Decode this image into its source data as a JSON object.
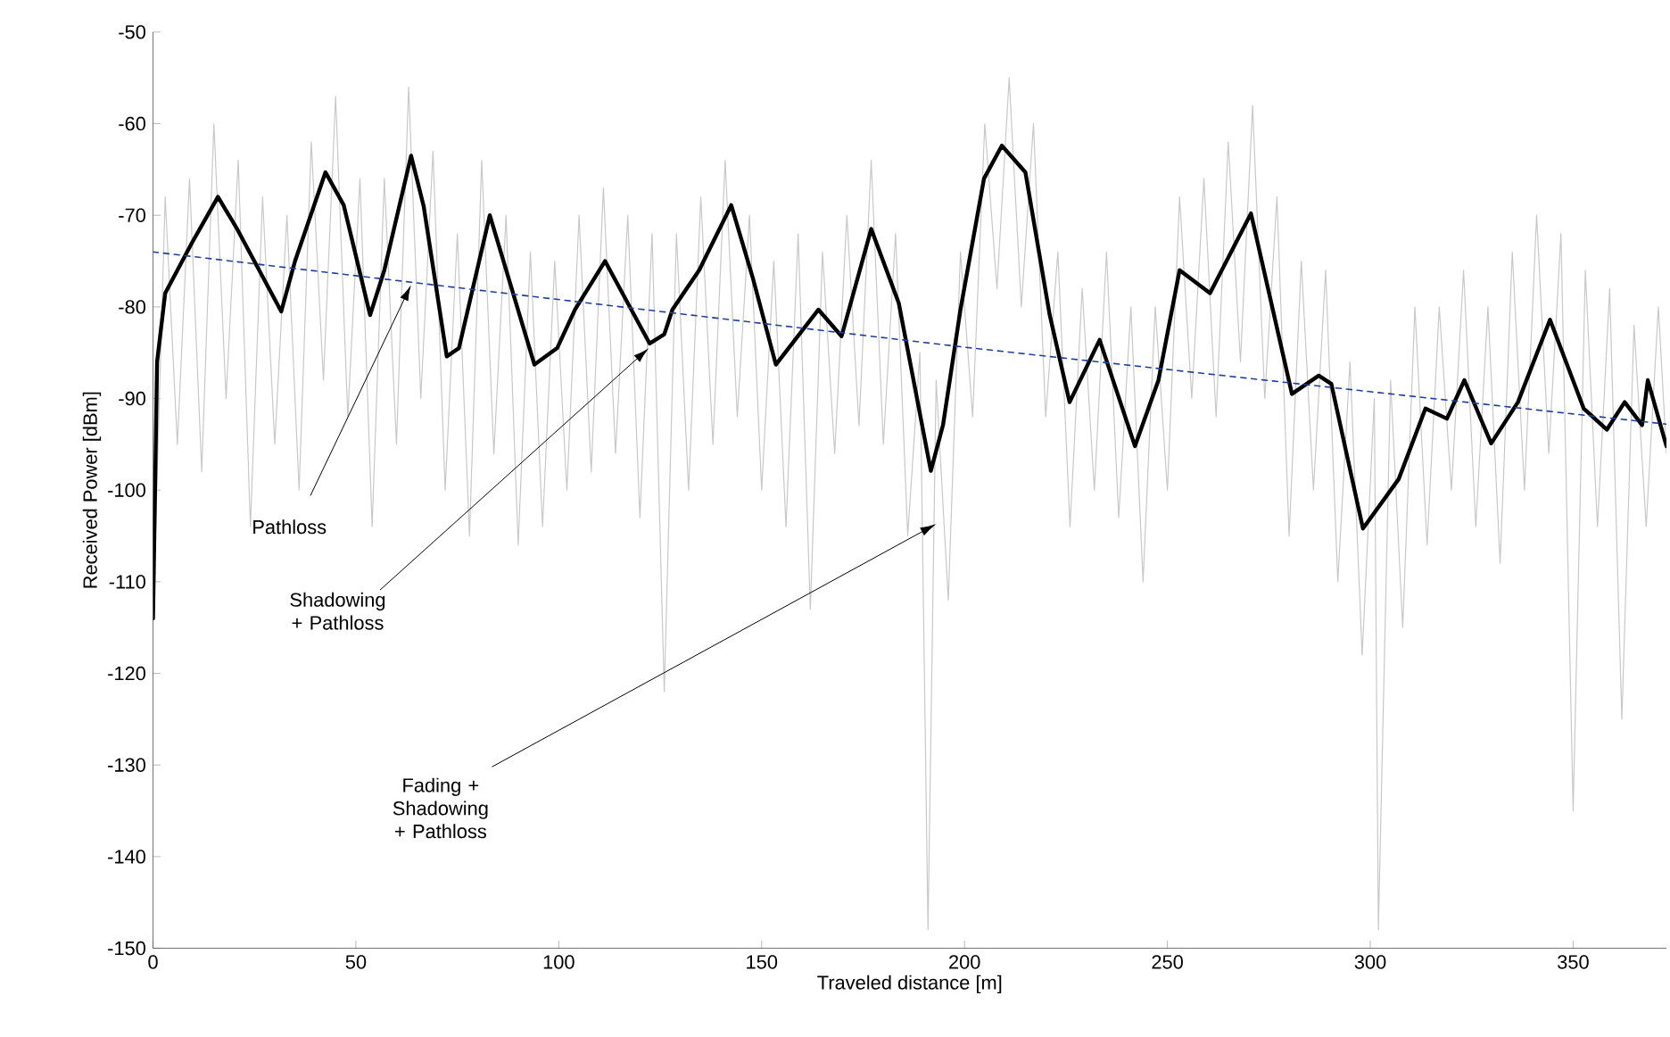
{
  "chart_data": {
    "type": "line",
    "xlabel": "Traveled distance [m]",
    "ylabel": "Received Power [dBm]",
    "xlim": [
      0,
      373
    ],
    "ylim": [
      -150,
      -50
    ],
    "xticks": [
      0,
      50,
      100,
      150,
      200,
      250,
      300,
      350
    ],
    "yticks": [
      -150,
      -140,
      -130,
      -120,
      -110,
      -100,
      -90,
      -80,
      -70,
      -60,
      -50
    ],
    "grid": false,
    "marker": "none",
    "series": [
      {
        "color": "#c8c8c8",
        "line_style": "solid",
        "x": [
          0,
          3,
          6,
          9,
          12,
          15,
          18,
          21,
          24,
          27,
          30,
          33,
          36,
          39,
          42,
          45,
          48,
          51,
          54,
          57,
          60,
          63,
          66,
          69,
          72,
          75,
          78,
          81,
          84,
          87,
          90,
          93,
          96,
          99,
          102,
          105,
          108,
          111,
          114,
          117,
          120,
          123,
          126,
          129,
          132,
          135,
          138,
          141,
          144,
          147,
          150,
          153,
          156,
          159,
          162,
          165,
          168,
          171,
          174,
          177,
          180,
          183,
          186,
          189,
          191,
          193,
          196,
          199,
          202,
          205,
          208,
          211,
          214,
          217,
          220,
          223,
          226,
          229,
          232,
          235,
          238,
          241,
          244,
          247,
          250,
          253,
          256,
          259,
          262,
          265,
          268,
          271,
          274,
          277,
          280,
          283,
          286,
          289,
          292,
          295,
          298,
          301,
          302,
          305,
          308,
          311,
          314,
          317,
          320,
          323,
          326,
          329,
          332,
          335,
          338,
          341,
          344,
          347,
          350,
          353,
          356,
          359,
          362,
          365,
          368,
          371,
          373
        ],
        "values": [
          -114,
          -68,
          -95,
          -66,
          -98,
          -60,
          -90,
          -64,
          -104,
          -68,
          -95,
          -70,
          -100,
          -62,
          -88,
          -57,
          -92,
          -66,
          -104,
          -66,
          -95,
          -56,
          -90,
          -63,
          -100,
          -72,
          -105,
          -64,
          -96,
          -70,
          -106,
          -74,
          -104,
          -75,
          -100,
          -70,
          -98,
          -67,
          -96,
          -70,
          -103,
          -72,
          -122,
          -72,
          -100,
          -68,
          -95,
          -64,
          -92,
          -70,
          -100,
          -75,
          -104,
          -72,
          -113,
          -74,
          -96,
          -70,
          -93,
          -64,
          -95,
          -72,
          -105,
          -85,
          -148,
          -88,
          -112,
          -74,
          -92,
          -60,
          -78,
          -55,
          -80,
          -60,
          -92,
          -74,
          -104,
          -78,
          -100,
          -74,
          -103,
          -80,
          -110,
          -80,
          -100,
          -68,
          -90,
          -66,
          -92,
          -62,
          -86,
          -58,
          -90,
          -68,
          -105,
          -75,
          -100,
          -76,
          -110,
          -86,
          -118,
          -90,
          -148,
          -88,
          -115,
          -80,
          -106,
          -80,
          -100,
          -76,
          -104,
          -80,
          -108,
          -74,
          -100,
          -70,
          -96,
          -72,
          -135,
          -76,
          -104,
          -78,
          -125,
          -82,
          -104,
          -80,
          -96
        ]
      },
      {
        "color": "#000000",
        "line_style": "solid",
        "x": [
          0,
          1,
          3,
          9.6,
          16,
          20.6,
          31.6,
          35,
          42.5,
          47,
          53.5,
          57,
          63.6,
          66.7,
          72.4,
          75.4,
          83,
          94,
          99.6,
          104,
          111.4,
          122.4,
          126,
          128,
          134.6,
          142.5,
          147.8,
          153.5,
          164,
          169.7,
          177,
          183.8,
          191.7,
          194.7,
          199,
          204.8,
          209.2,
          215,
          221,
          225.9,
          233.3,
          242,
          247.8,
          253,
          260.5,
          270.6,
          280.7,
          287.3,
          290.4,
          298.2,
          307,
          313.6,
          318.9,
          323.2,
          329.8,
          336.4,
          344.3,
          352.6,
          358.3,
          362.7,
          367,
          368.4,
          373
        ],
        "values": [
          -114,
          -86,
          -78.5,
          -73,
          -68,
          -71.4,
          -80.5,
          -75,
          -65.3,
          -68.9,
          -80.9,
          -76,
          -63.5,
          -69,
          -85.4,
          -84.5,
          -70,
          -86.3,
          -84.5,
          -80.3,
          -75,
          -84,
          -83,
          -80.3,
          -76,
          -68.9,
          -76.8,
          -86.3,
          -80.3,
          -83.2,
          -71.5,
          -79.6,
          -97.9,
          -92.9,
          -80.3,
          -66,
          -62.4,
          -65.3,
          -80.9,
          -90.4,
          -83.6,
          -95.2,
          -88,
          -76,
          -78.5,
          -69.8,
          -89.5,
          -87.5,
          -88.4,
          -104.2,
          -98.8,
          -91.1,
          -92.2,
          -88,
          -94.9,
          -90.4,
          -81.4,
          -91.1,
          -93.4,
          -90.4,
          -92.9,
          -88,
          -95.2
        ]
      },
      {
        "color": "#1f3f9f",
        "line_style": "dashed",
        "x": [
          0,
          200,
          373
        ],
        "values": [
          -74,
          -84.4,
          -92.8
        ]
      }
    ],
    "annotations": [
      {
        "text": "Pathloss",
        "x": 63.6,
        "y": -77.6
      },
      {
        "text": "Shadowing + Pathloss",
        "x": 122.2,
        "y": -84.5
      },
      {
        "text": "Fading + Shadowing + Pathloss",
        "x": 193,
        "y": -103.7
      }
    ]
  }
}
